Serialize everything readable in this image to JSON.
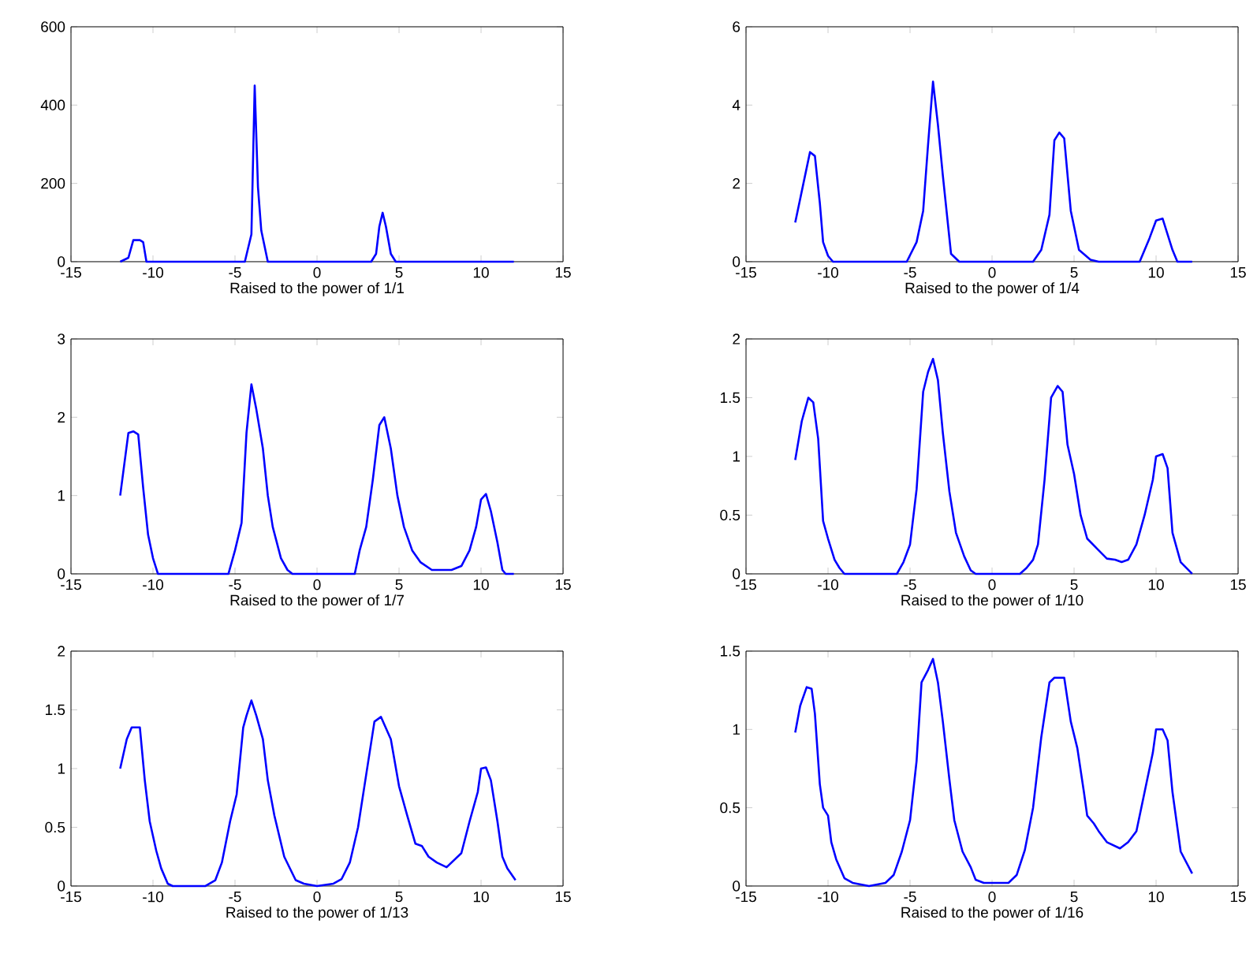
{
  "chart_data": [
    {
      "type": "line",
      "xlabel": "Raised to the power of  1/1",
      "color": "#0000ff",
      "xlim": [
        -15,
        15
      ],
      "ylim": [
        0,
        600
      ],
      "xticks": [
        -15,
        -10,
        -5,
        0,
        5,
        10,
        15
      ],
      "yticks": [
        0,
        200,
        400,
        600
      ],
      "x": [
        -12,
        -11.5,
        -11.2,
        -10.8,
        -10.6,
        -10.4,
        -4.4,
        -4.0,
        -3.8,
        -3.6,
        -3.4,
        -3.0,
        3.3,
        3.6,
        3.8,
        4.0,
        4.2,
        4.5,
        4.8,
        12
      ],
      "values": [
        0,
        10,
        55,
        55,
        50,
        0,
        0,
        70,
        450,
        190,
        80,
        0,
        0,
        20,
        90,
        125,
        90,
        20,
        0,
        0
      ]
    },
    {
      "type": "line",
      "xlabel": "Raised to the power of  1/4",
      "color": "#0000ff",
      "xlim": [
        -15,
        15
      ],
      "ylim": [
        0,
        6
      ],
      "xticks": [
        -15,
        -10,
        -5,
        0,
        5,
        10,
        15
      ],
      "yticks": [
        0,
        2,
        4,
        6
      ],
      "x": [
        -12,
        -11.5,
        -11.1,
        -10.8,
        -10.5,
        -10.3,
        -10,
        -9.7,
        -5.2,
        -4.6,
        -4.2,
        -3.9,
        -3.6,
        -3.3,
        -3.0,
        -2.5,
        -2.0,
        2.5,
        3.0,
        3.5,
        3.8,
        4.1,
        4.4,
        4.8,
        5.3,
        6.0,
        6.5,
        9.0,
        9.6,
        10.0,
        10.4,
        10.7,
        11.0,
        11.3,
        12.2
      ],
      "values": [
        1.0,
        2.0,
        2.8,
        2.7,
        1.5,
        0.5,
        0.15,
        0,
        0,
        0.5,
        1.3,
        3.0,
        4.6,
        3.5,
        2.2,
        0.2,
        0,
        0,
        0.3,
        1.2,
        3.1,
        3.3,
        3.15,
        1.3,
        0.3,
        0.05,
        0,
        0,
        0.6,
        1.05,
        1.1,
        0.7,
        0.3,
        0,
        0
      ]
    },
    {
      "type": "line",
      "xlabel": "Raised to the power of  1/7",
      "color": "#0000ff",
      "xlim": [
        -15,
        15
      ],
      "ylim": [
        0,
        3
      ],
      "xticks": [
        -15,
        -10,
        -5,
        0,
        5,
        10,
        15
      ],
      "yticks": [
        0,
        1,
        2,
        3
      ],
      "x": [
        -12,
        -11.5,
        -11.2,
        -10.9,
        -10.6,
        -10.3,
        -10,
        -9.7,
        -5.4,
        -5,
        -4.6,
        -4.3,
        -4,
        -3.7,
        -3.3,
        -3,
        -2.7,
        -2.2,
        -1.8,
        -1.5,
        2.3,
        2.6,
        3.0,
        3.4,
        3.8,
        4.1,
        4.5,
        4.9,
        5.3,
        5.8,
        6.3,
        7.0,
        8.2,
        8.8,
        9.3,
        9.7,
        10.0,
        10.3,
        10.6,
        11.0,
        11.3,
        11.5,
        12
      ],
      "values": [
        1.0,
        1.8,
        1.82,
        1.78,
        1.1,
        0.5,
        0.2,
        0,
        0,
        0.3,
        0.65,
        1.8,
        2.42,
        2.1,
        1.6,
        1.0,
        0.6,
        0.2,
        0.05,
        0,
        0,
        0.3,
        0.6,
        1.2,
        1.9,
        2.0,
        1.6,
        1.0,
        0.6,
        0.3,
        0.15,
        0.05,
        0.05,
        0.1,
        0.3,
        0.6,
        0.95,
        1.02,
        0.8,
        0.4,
        0.05,
        0,
        0
      ]
    },
    {
      "type": "line",
      "xlabel": "Raised to the power of  1/10",
      "color": "#0000ff",
      "xlim": [
        -15,
        15
      ],
      "ylim": [
        0,
        2
      ],
      "xticks": [
        -15,
        -10,
        -5,
        0,
        5,
        10,
        15
      ],
      "yticks": [
        0,
        0.5,
        1,
        1.5,
        2
      ],
      "x": [
        -12,
        -11.6,
        -11.2,
        -10.9,
        -10.6,
        -10.3,
        -10,
        -9.6,
        -9.3,
        -9,
        -5.8,
        -5.4,
        -5.0,
        -4.6,
        -4.2,
        -3.9,
        -3.6,
        -3.3,
        -3.0,
        -2.6,
        -2.2,
        -1.7,
        -1.3,
        -1.0,
        1.7,
        2.1,
        2.5,
        2.8,
        3.2,
        3.6,
        4.0,
        4.3,
        4.6,
        5.0,
        5.4,
        5.8,
        6.5,
        7.0,
        7.5,
        7.9,
        8.3,
        8.8,
        9.3,
        9.8,
        10.0,
        10.4,
        10.7,
        11.0,
        11.5,
        12.2
      ],
      "values": [
        0.97,
        1.3,
        1.5,
        1.46,
        1.15,
        0.45,
        0.3,
        0.12,
        0.05,
        0,
        0,
        0.1,
        0.25,
        0.72,
        1.55,
        1.72,
        1.83,
        1.65,
        1.2,
        0.7,
        0.35,
        0.15,
        0.03,
        0,
        0,
        0.05,
        0.12,
        0.25,
        0.8,
        1.5,
        1.6,
        1.55,
        1.1,
        0.85,
        0.5,
        0.3,
        0.2,
        0.13,
        0.12,
        0.1,
        0.12,
        0.25,
        0.5,
        0.8,
        1.0,
        1.02,
        0.9,
        0.35,
        0.1,
        0
      ]
    },
    {
      "type": "line",
      "xlabel": "Raised to the power of  1/13",
      "color": "#0000ff",
      "xlim": [
        -15,
        15
      ],
      "ylim": [
        0,
        2
      ],
      "xticks": [
        -15,
        -10,
        -5,
        0,
        5,
        10,
        15
      ],
      "yticks": [
        0,
        0.5,
        1,
        1.5,
        2
      ],
      "x": [
        -12,
        -11.6,
        -11.3,
        -10.8,
        -10.5,
        -10.2,
        -9.8,
        -9.5,
        -9.1,
        -8.8,
        -6.8,
        -6.2,
        -5.8,
        -5.3,
        -4.9,
        -4.5,
        -4.3,
        -4.0,
        -3.7,
        -3.3,
        -3.0,
        -2.6,
        -2.0,
        -1.3,
        -0.8,
        0,
        1.0,
        1.5,
        2.0,
        2.5,
        3.0,
        3.5,
        3.9,
        4.5,
        5.0,
        5.5,
        6.0,
        6.4,
        6.8,
        7.3,
        7.9,
        8.8,
        9.3,
        9.8,
        10.0,
        10.3,
        10.6,
        11.0,
        11.3,
        11.6,
        12.1
      ],
      "values": [
        1.0,
        1.25,
        1.35,
        1.35,
        0.9,
        0.55,
        0.3,
        0.15,
        0.02,
        0,
        0,
        0.05,
        0.2,
        0.55,
        0.78,
        1.35,
        1.45,
        1.58,
        1.45,
        1.25,
        0.9,
        0.6,
        0.25,
        0.05,
        0.02,
        0,
        0.02,
        0.06,
        0.2,
        0.5,
        0.95,
        1.4,
        1.44,
        1.25,
        0.85,
        0.6,
        0.36,
        0.34,
        0.25,
        0.2,
        0.16,
        0.28,
        0.55,
        0.8,
        1.0,
        1.01,
        0.9,
        0.55,
        0.25,
        0.15,
        0.05
      ]
    },
    {
      "type": "line",
      "xlabel": "Raised to the power of  1/16",
      "color": "#0000ff",
      "xlim": [
        -15,
        15
      ],
      "ylim": [
        0,
        1.5
      ],
      "xticks": [
        -15,
        -10,
        -5,
        0,
        5,
        10,
        15
      ],
      "yticks": [
        0,
        0.5,
        1,
        1.5
      ],
      "x": [
        -12,
        -11.7,
        -11.3,
        -11.0,
        -10.8,
        -10.5,
        -10.3,
        -10.0,
        -9.8,
        -9.5,
        -9.0,
        -8.5,
        -7.5,
        -6.5,
        -6.0,
        -5.5,
        -5.0,
        -4.6,
        -4.3,
        -3.9,
        -3.6,
        -3.3,
        -3.0,
        -2.6,
        -2.3,
        -1.8,
        -1.3,
        -1.0,
        -0.5,
        0,
        1.0,
        1.5,
        2.0,
        2.5,
        3.0,
        3.5,
        3.8,
        4.4,
        4.8,
        5.2,
        5.6,
        5.8,
        6.2,
        6.5,
        7.0,
        7.8,
        8.3,
        8.8,
        9.3,
        9.8,
        10.0,
        10.4,
        10.7,
        11.0,
        11.5,
        12.2
      ],
      "values": [
        0.98,
        1.15,
        1.27,
        1.26,
        1.1,
        0.65,
        0.5,
        0.45,
        0.28,
        0.17,
        0.05,
        0.02,
        0,
        0.02,
        0.07,
        0.22,
        0.42,
        0.8,
        1.3,
        1.38,
        1.45,
        1.3,
        1.05,
        0.68,
        0.42,
        0.22,
        0.12,
        0.04,
        0.02,
        0.02,
        0.02,
        0.07,
        0.23,
        0.5,
        0.95,
        1.3,
        1.33,
        1.33,
        1.05,
        0.88,
        0.6,
        0.45,
        0.4,
        0.35,
        0.28,
        0.24,
        0.28,
        0.35,
        0.6,
        0.85,
        1.0,
        1.0,
        0.93,
        0.6,
        0.22,
        0.08
      ]
    }
  ]
}
